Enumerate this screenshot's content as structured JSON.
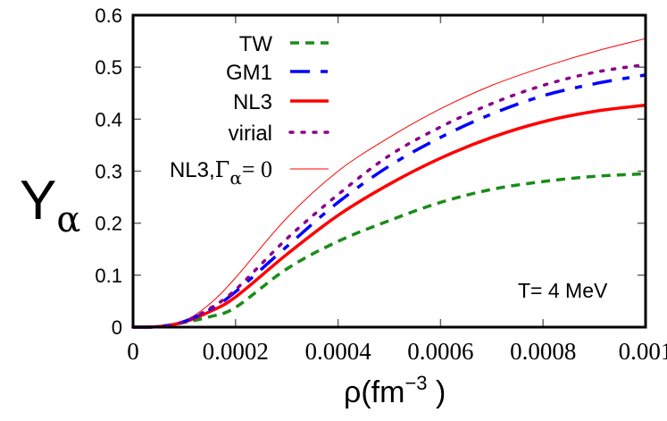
{
  "chart_data": {
    "type": "line",
    "title": "",
    "xlabel": "ρ(fm",
    "xlabel_exponent": "−3",
    "xlabel_close": " )",
    "ylabel": "Y",
    "ylabel_subscript": "α",
    "xlim": [
      0,
      0.001
    ],
    "ylim": [
      0,
      0.6
    ],
    "x_ticks": [
      0,
      0.0002,
      0.0004,
      0.0006,
      0.0008,
      0.001
    ],
    "x_tick_labels": [
      "0",
      "0.0002",
      "0.0004",
      "0.0006",
      "0.0008",
      "0.001"
    ],
    "y_ticks": [
      0,
      0.1,
      0.2,
      0.3,
      0.4,
      0.5,
      0.6
    ],
    "y_tick_labels": [
      "0",
      "0.1",
      "0.2",
      "0.3",
      "0.4",
      "0.5",
      "0.6"
    ],
    "grid": false,
    "legend_position": "top-left",
    "annotation": "T= 4 MeV",
    "x": [
      0,
      5e-05,
      0.0001,
      0.00015,
      0.0002,
      0.0003,
      0.0004,
      0.0005,
      0.0006,
      0.0007,
      0.0008,
      0.0009,
      0.001
    ],
    "series": [
      {
        "name": "TW",
        "color": "#1a8c1a",
        "style": "dashed",
        "values": [
          0,
          0.001,
          0.009,
          0.02,
          0.038,
          0.112,
          0.165,
          0.205,
          0.24,
          0.265,
          0.28,
          0.29,
          0.295
        ]
      },
      {
        "name": "GM1",
        "color": "#0000ff",
        "style": "dash-dot",
        "values": [
          0,
          0.001,
          0.011,
          0.034,
          0.068,
          0.155,
          0.24,
          0.31,
          0.365,
          0.41,
          0.445,
          0.468,
          0.485
        ]
      },
      {
        "name": "NL3",
        "color": "#ff0000",
        "style": "solid-thick",
        "values": [
          0,
          0.001,
          0.01,
          0.03,
          0.058,
          0.14,
          0.215,
          0.275,
          0.325,
          0.365,
          0.395,
          0.415,
          0.427
        ]
      },
      {
        "name": "virial",
        "color": "#8b008b",
        "style": "dotted",
        "values": [
          0,
          0.001,
          0.011,
          0.036,
          0.072,
          0.17,
          0.255,
          0.33,
          0.385,
          0.43,
          0.465,
          0.49,
          0.505
        ]
      },
      {
        "name": "NL3,",
        "name_symbol": "Γ",
        "name_subscript": "α",
        "name_suffix": "= 0",
        "color": "#ff0000",
        "style": "solid-thin",
        "values": [
          0,
          0.001,
          0.012,
          0.045,
          0.095,
          0.21,
          0.3,
          0.365,
          0.42,
          0.465,
          0.5,
          0.53,
          0.555
        ]
      }
    ]
  }
}
